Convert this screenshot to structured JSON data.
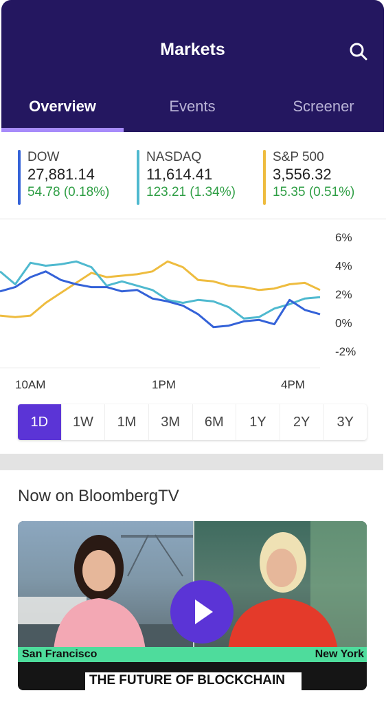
{
  "header": {
    "title": "Markets",
    "tabs": [
      {
        "label": "Overview",
        "active": true
      },
      {
        "label": "Events",
        "active": false
      },
      {
        "label": "Screener",
        "active": false
      }
    ]
  },
  "indices": [
    {
      "name": "DOW",
      "value": "27,881.14",
      "change": "54.78 (0.18%)",
      "color": "#3462d8"
    },
    {
      "name": "NASDAQ",
      "value": "11,614.41",
      "change": "123.21 (1.34%)",
      "color": "#4fb9cf"
    },
    {
      "name": "S&P 500",
      "value": "3,556.32",
      "change": "15.35 (0.51%)",
      "color": "#eebc3f"
    }
  ],
  "chart_data": {
    "type": "line",
    "y_ticks": [
      "6%",
      "4%",
      "2%",
      "0%",
      "-2%"
    ],
    "x_ticks": [
      "10AM",
      "1PM",
      "4PM"
    ],
    "ylim": [
      -2,
      6
    ],
    "grid": false,
    "series": [
      {
        "name": "DOW",
        "color": "#3462d8",
        "y": [
          2.2,
          2.5,
          3.2,
          3.6,
          3.0,
          2.7,
          2.5,
          2.5,
          2.2,
          2.3,
          1.7,
          1.5,
          1.2,
          0.6,
          -0.3,
          -0.2,
          0.1,
          0.2,
          -0.1,
          1.6,
          0.9,
          0.6
        ]
      },
      {
        "name": "NASDAQ",
        "color": "#4fb9cf",
        "y": [
          3.6,
          2.7,
          4.2,
          4.0,
          4.1,
          4.3,
          3.9,
          2.6,
          2.9,
          2.6,
          2.3,
          1.6,
          1.4,
          1.6,
          1.5,
          1.1,
          0.3,
          0.4,
          1.0,
          1.3,
          1.7,
          1.8
        ]
      },
      {
        "name": "S&P 500",
        "color": "#eebc3f",
        "y": [
          0.5,
          0.4,
          0.5,
          1.4,
          2.1,
          2.8,
          3.5,
          3.2,
          3.3,
          3.4,
          3.6,
          4.3,
          3.9,
          3.0,
          2.9,
          2.6,
          2.5,
          2.3,
          2.4,
          2.7,
          2.8,
          2.3
        ]
      }
    ]
  },
  "ranges": {
    "options": [
      "1D",
      "1W",
      "1M",
      "3M",
      "6M",
      "1Y",
      "2Y",
      "3Y"
    ],
    "selected": "1D"
  },
  "tv": {
    "section_title": "Now on BloombergTV",
    "location_left": "San Francisco",
    "location_right": "New York",
    "headline": "THE FUTURE OF BLOCKCHAIN",
    "accent_color": "#5b34d6"
  }
}
